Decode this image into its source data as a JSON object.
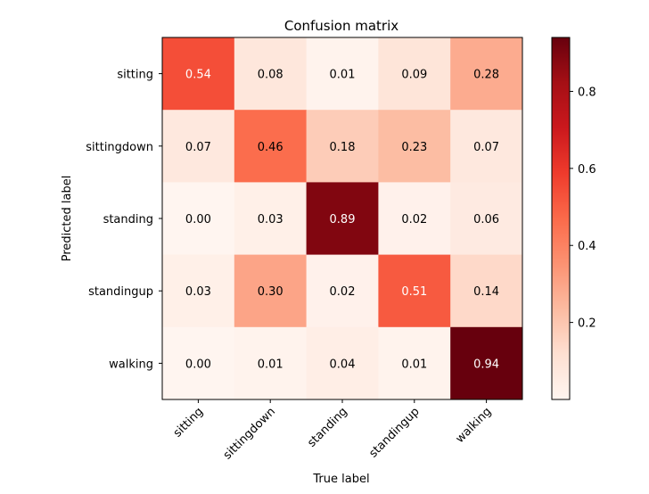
{
  "chart_data": {
    "type": "heatmap",
    "title": "Confusion matrix",
    "xlabel": "True label",
    "ylabel": "Predicted label",
    "x_categories": [
      "sitting",
      "sittingdown",
      "standing",
      "standingup",
      "walking"
    ],
    "y_categories": [
      "sitting",
      "sittingdown",
      "standing",
      "standingup",
      "walking"
    ],
    "values": [
      [
        0.54,
        0.08,
        0.01,
        0.09,
        0.28
      ],
      [
        0.07,
        0.46,
        0.18,
        0.23,
        0.07
      ],
      [
        0.0,
        0.03,
        0.89,
        0.02,
        0.06
      ],
      [
        0.03,
        0.3,
        0.02,
        0.51,
        0.14
      ],
      [
        0.0,
        0.01,
        0.04,
        0.01,
        0.94
      ]
    ],
    "cell_labels": [
      [
        "0.54",
        "0.08",
        "0.01",
        "0.09",
        "0.28"
      ],
      [
        "0.07",
        "0.46",
        "0.18",
        "0.23",
        "0.07"
      ],
      [
        "0.00",
        "0.03",
        "0.89",
        "0.02",
        "0.06"
      ],
      [
        "0.03",
        "0.30",
        "0.02",
        "0.51",
        "0.14"
      ],
      [
        "0.00",
        "0.01",
        "0.04",
        "0.01",
        "0.94"
      ]
    ],
    "colormap": "Reds",
    "color_range": [
      0.0,
      0.94
    ],
    "colorbar_ticks": [
      0.2,
      0.4,
      0.6,
      0.8
    ],
    "colorbar_tick_labels": [
      "0.2",
      "0.4",
      "0.6",
      "0.8"
    ],
    "grid": false
  }
}
